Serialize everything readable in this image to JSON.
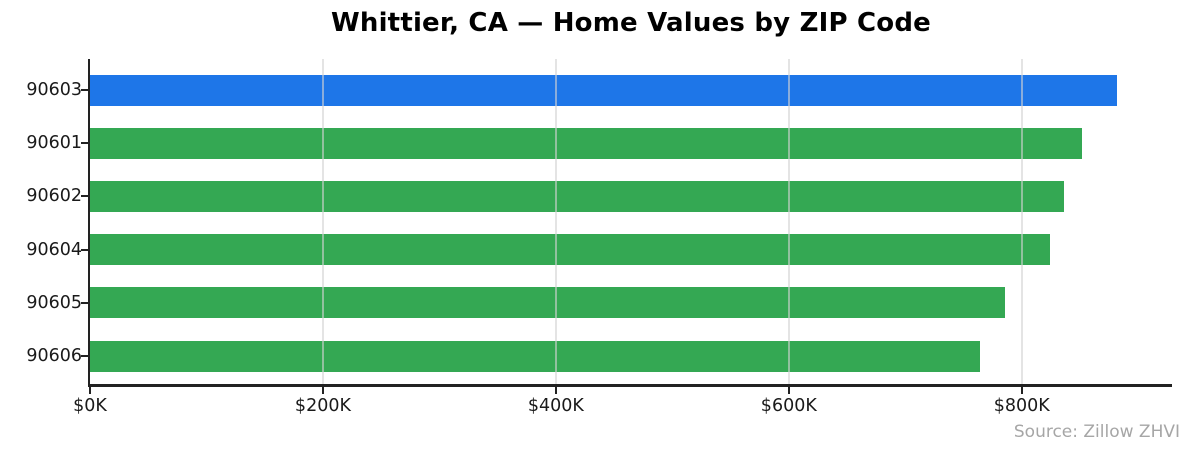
{
  "title": "Whittier, CA — Home Values by ZIP Code",
  "source_note": "Source: Zillow ZHVI",
  "colors": {
    "highlight_bar": "#1e76e8",
    "bar": "#34a853",
    "grid": "rgba(210,210,210,0.6)",
    "axis": "#222222",
    "tick_text": "#1a1a1a",
    "muted_text": "#a6a6a6"
  },
  "chart_data": {
    "type": "bar",
    "orientation": "horizontal",
    "title": "Whittier, CA — Home Values by ZIP Code",
    "categories": [
      "90603",
      "90601",
      "90602",
      "90604",
      "90605",
      "90606"
    ],
    "values": [
      882000,
      852000,
      836000,
      824000,
      786000,
      764000
    ],
    "highlight_category": "90603",
    "xlabel": "",
    "ylabel": "",
    "xtick_values": [
      0,
      200000,
      400000,
      600000,
      800000
    ],
    "xtick_labels": [
      "$0K",
      "$200K",
      "$400K",
      "$600K",
      "$800K"
    ],
    "xlim": [
      0,
      929000
    ],
    "grid": "vertical-over-bars",
    "legend": "none",
    "source": "Source: Zillow ZHVI"
  }
}
